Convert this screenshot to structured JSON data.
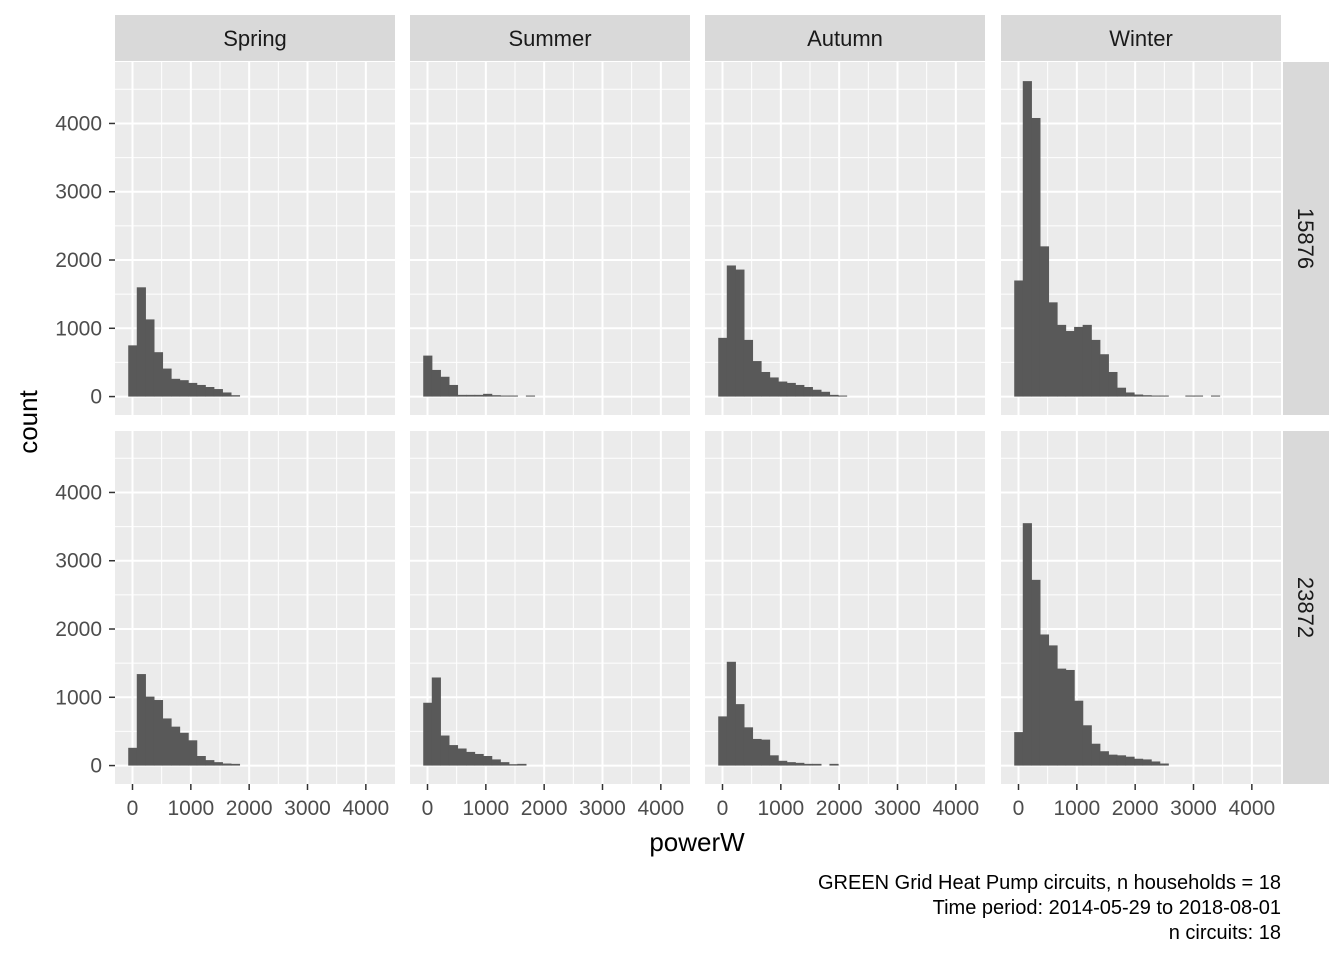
{
  "chart_data": {
    "type": "bar",
    "xlabel": "powerW",
    "ylabel": "count",
    "xlim": [
      -300,
      4500
    ],
    "ylim": [
      -270,
      4900
    ],
    "x_ticks": [
      0,
      1000,
      2000,
      3000,
      4000
    ],
    "x_tick_labels": [
      "0",
      "1000",
      "2000",
      "3000",
      "4000"
    ],
    "y_ticks": [
      0,
      1000,
      2000,
      3000,
      4000
    ],
    "y_tick_labels": [
      "0",
      "1000",
      "2000",
      "3000",
      "4000"
    ],
    "bin_width": 146.67,
    "bin_start": -73.33,
    "facet_columns": [
      "Spring",
      "Summer",
      "Autumn",
      "Winter"
    ],
    "facet_rows": [
      "15876",
      "23872"
    ],
    "grid": true,
    "bar_color": "#595959",
    "panel_background": "#ebebeb",
    "strip_background": "#d9d9d9",
    "panels": [
      {
        "row": "15876",
        "column": "Spring",
        "counts": [
          750,
          1600,
          1130,
          650,
          410,
          260,
          240,
          200,
          170,
          140,
          110,
          60,
          20
        ]
      },
      {
        "row": "15876",
        "column": "Summer",
        "counts": [
          600,
          390,
          290,
          170,
          25,
          25,
          25,
          40,
          20,
          15,
          15,
          0,
          15
        ]
      },
      {
        "row": "15876",
        "column": "Autumn",
        "counts": [
          860,
          1920,
          1860,
          830,
          520,
          360,
          280,
          220,
          200,
          170,
          140,
          100,
          70,
          25,
          15
        ]
      },
      {
        "row": "15876",
        "column": "Winter",
        "counts": [
          1700,
          4620,
          4080,
          2200,
          1380,
          1050,
          960,
          1020,
          1050,
          830,
          620,
          360,
          130,
          60,
          30,
          20,
          15,
          15,
          0,
          0,
          15,
          15,
          0,
          15
        ]
      },
      {
        "row": "23872",
        "column": "Spring",
        "counts": [
          260,
          1340,
          1010,
          960,
          690,
          570,
          480,
          370,
          140,
          80,
          50,
          30,
          25
        ]
      },
      {
        "row": "23872",
        "column": "Summer",
        "counts": [
          920,
          1290,
          440,
          300,
          250,
          200,
          170,
          140,
          90,
          50,
          20,
          25
        ]
      },
      {
        "row": "23872",
        "column": "Autumn",
        "counts": [
          720,
          1520,
          900,
          560,
          390,
          380,
          150,
          70,
          50,
          40,
          25,
          25,
          0,
          25
        ]
      },
      {
        "row": "23872",
        "column": "Winter",
        "counts": [
          490,
          3550,
          2720,
          1920,
          1760,
          1420,
          1400,
          950,
          590,
          320,
          210,
          160,
          150,
          130,
          100,
          90,
          60,
          30
        ]
      }
    ],
    "caption": [
      "GREEN Grid Heat Pump circuits, n households = 18",
      "Time period: 2014-05-29 to 2018-08-01",
      "n circuits: 18"
    ]
  }
}
